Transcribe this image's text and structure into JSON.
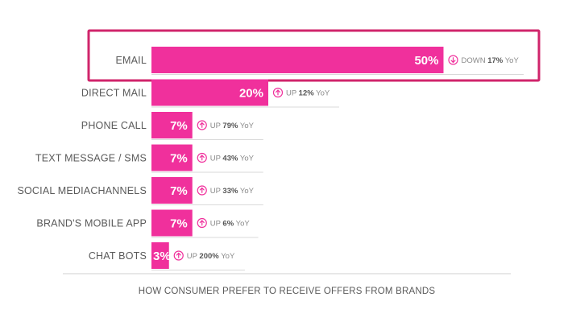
{
  "chart_data": {
    "type": "bar",
    "orientation": "horizontal",
    "title": "",
    "xlabel": "HOW CONSUMER PREFER TO RECEIVE OFFERS FROM BRANDS",
    "ylabel": "",
    "xlim": [
      0,
      100
    ],
    "grid": false,
    "categories": [
      "EMAIL",
      "DIRECT MAIL",
      "PHONE CALL",
      "TEXT MESSAGE / SMS",
      "SOCIAL MEDIACHANNELS",
      "BRAND'S MOBILE APP",
      "CHAT BOTS"
    ],
    "values": [
      50,
      20,
      7,
      7,
      7,
      7,
      3
    ],
    "value_labels": [
      "50%",
      "20%",
      "7%",
      "7%",
      "7%",
      "7%",
      "3%"
    ],
    "yoy": [
      {
        "direction": "down",
        "word": "DOWN",
        "value": "17%",
        "suffix": "YoY"
      },
      {
        "direction": "up",
        "word": "UP",
        "value": "12%",
        "suffix": "YoY"
      },
      {
        "direction": "up",
        "word": "UP",
        "value": "79%",
        "suffix": "YoY"
      },
      {
        "direction": "up",
        "word": "UP",
        "value": "43%",
        "suffix": "YoY"
      },
      {
        "direction": "up",
        "word": "UP",
        "value": "33%",
        "suffix": "YoY"
      },
      {
        "direction": "up",
        "word": "UP",
        "value": "6%",
        "suffix": "YoY"
      },
      {
        "direction": "up",
        "word": "UP",
        "value": "200%",
        "suffix": "YoY"
      }
    ],
    "highlighted_category": "EMAIL",
    "colors": {
      "bar": "#f0309c",
      "highlight_border": "#d0256b",
      "text": "#5a5a5a",
      "baseline": "#cfcfcf",
      "underline": "#d9d9d9"
    }
  }
}
